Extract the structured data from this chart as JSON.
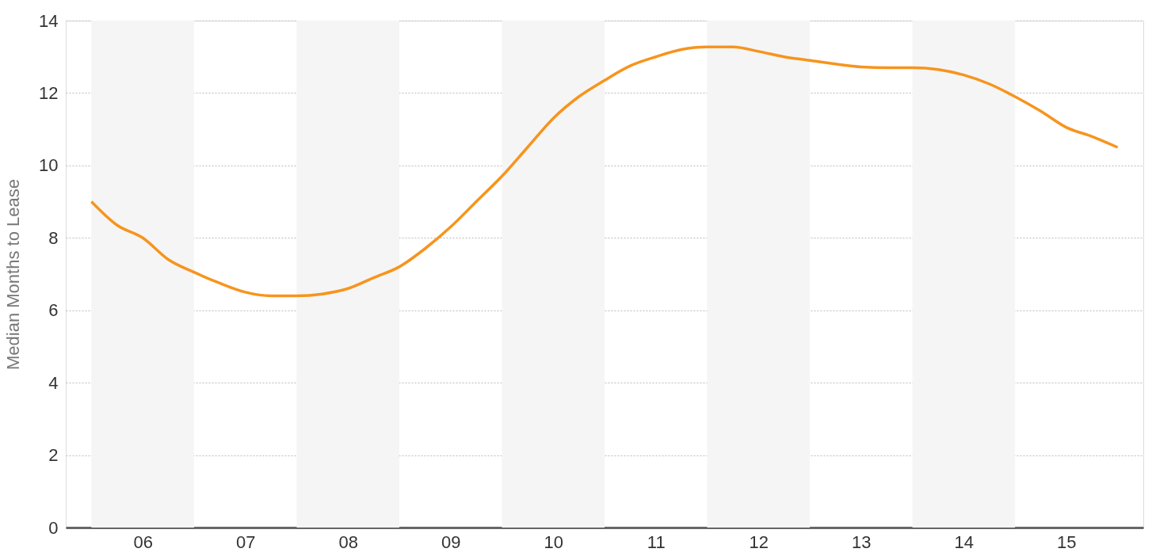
{
  "chart_data": {
    "type": "line",
    "ylabel": "Median Months to Lease",
    "x": [
      5.5,
      5.75,
      6.0,
      6.25,
      6.5,
      6.75,
      7.0,
      7.25,
      7.5,
      7.75,
      8.0,
      8.25,
      8.5,
      8.75,
      9.0,
      9.25,
      9.5,
      9.75,
      10.0,
      10.25,
      10.5,
      10.75,
      11.0,
      11.25,
      11.5,
      11.75,
      12.0,
      12.25,
      12.5,
      12.75,
      13.0,
      13.25,
      13.5,
      13.75,
      14.0,
      14.25,
      14.5,
      14.75,
      15.0,
      15.25,
      15.5
    ],
    "series": [
      {
        "color": "#f7941d",
        "values": [
          9.0,
          8.35,
          8.0,
          7.4,
          7.05,
          6.75,
          6.5,
          6.4,
          6.4,
          6.45,
          6.6,
          6.9,
          7.2,
          7.7,
          8.3,
          9.0,
          9.7,
          10.5,
          11.3,
          11.9,
          12.35,
          12.75,
          13.0,
          13.2,
          13.27,
          13.27,
          13.15,
          13.0,
          12.9,
          12.8,
          12.72,
          12.7,
          12.7,
          12.65,
          12.5,
          12.25,
          11.9,
          11.5,
          11.05,
          10.8,
          10.5
        ]
      }
    ],
    "xlim": [
      5.25,
      15.75
    ],
    "xticks": [
      {
        "value": 6,
        "label": "06"
      },
      {
        "value": 7,
        "label": "07"
      },
      {
        "value": 8,
        "label": "08"
      },
      {
        "value": 9,
        "label": "09"
      },
      10,
      11,
      12,
      13,
      14,
      15
    ],
    "ylim": [
      0,
      14
    ],
    "yticks": [
      0,
      2,
      4,
      6,
      8,
      10,
      12,
      14
    ],
    "bands": [
      {
        "axis": "x",
        "from": 5.5,
        "to": 6.5,
        "color": "#f5f5f5"
      },
      {
        "axis": "x",
        "from": 7.5,
        "to": 8.5,
        "color": "#f5f5f5"
      },
      {
        "axis": "x",
        "from": 9.5,
        "to": 10.5,
        "color": "#f5f5f5"
      },
      {
        "axis": "x",
        "from": 11.5,
        "to": 12.5,
        "color": "#f5f5f5"
      },
      {
        "axis": "x",
        "from": 13.5,
        "to": 14.5,
        "color": "#f5f5f5"
      }
    ],
    "grid": "y",
    "marker": "none",
    "line_style": "solid"
  }
}
